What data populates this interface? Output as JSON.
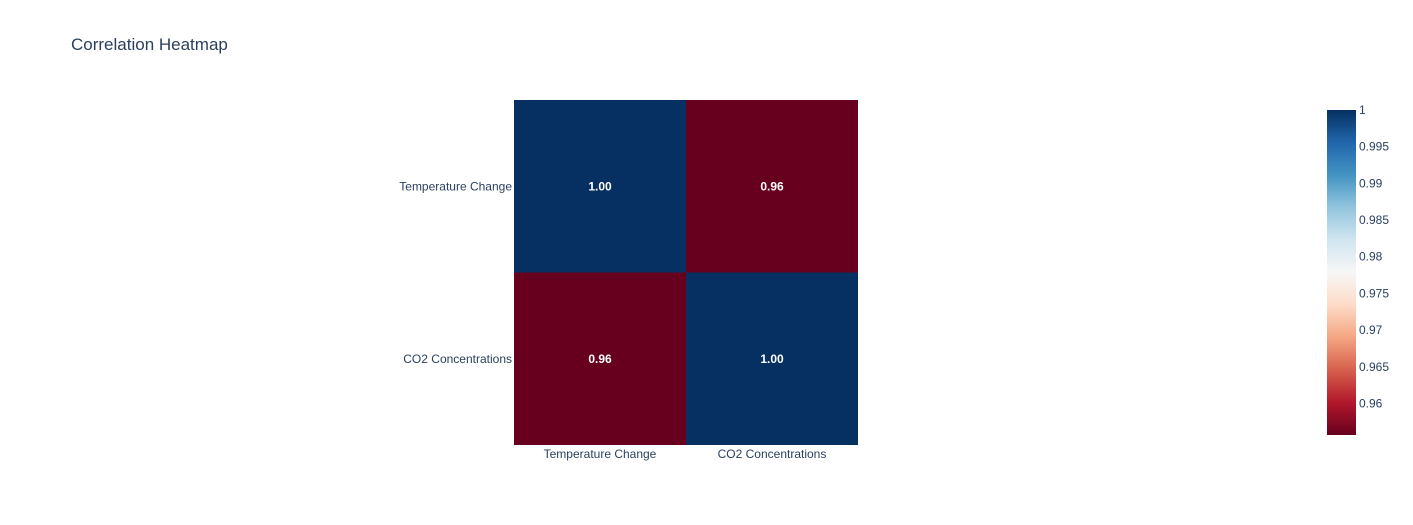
{
  "chart_data": {
    "type": "heatmap",
    "title": "Correlation Heatmap",
    "x_categories": [
      "Temperature Change",
      "CO2 Concentrations"
    ],
    "y_categories": [
      "Temperature Change",
      "CO2 Concentrations"
    ],
    "z": [
      [
        1.0,
        0.9557
      ],
      [
        0.9557,
        1.0
      ]
    ],
    "cell_labels": [
      [
        "1.00",
        "0.96"
      ],
      [
        "0.96",
        "1.00"
      ]
    ],
    "colorscale": "RdBu",
    "colorscale_colors": [
      "#67001f",
      "#b2182b",
      "#d6604d",
      "#f4a582",
      "#fddbc7",
      "#f7f7f7",
      "#d1e5f0",
      "#92c5de",
      "#4393c3",
      "#2166ac",
      "#053061"
    ],
    "zmin": 0.9557,
    "zmax": 1.0,
    "colorbar_ticks": [
      {
        "value": 1,
        "label": "1"
      },
      {
        "value": 0.995,
        "label": "0.995"
      },
      {
        "value": 0.99,
        "label": "0.99"
      },
      {
        "value": 0.985,
        "label": "0.985"
      },
      {
        "value": 0.98,
        "label": "0.98"
      },
      {
        "value": 0.975,
        "label": "0.975"
      },
      {
        "value": 0.97,
        "label": "0.97"
      },
      {
        "value": 0.965,
        "label": "0.965"
      },
      {
        "value": 0.96,
        "label": "0.96"
      }
    ],
    "colorbar_position": "right"
  }
}
